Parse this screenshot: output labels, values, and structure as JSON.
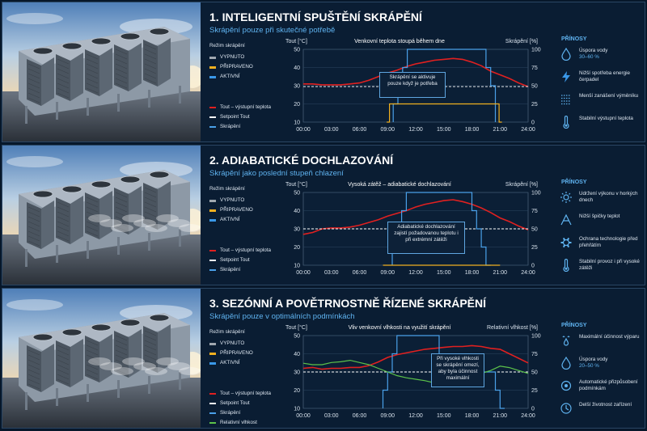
{
  "colors": {
    "tout": "#e02020",
    "setpoint": "#ffffff",
    "spray": "#4aa0e8",
    "humidity": "#5cc24a",
    "off": "#a0a8b0",
    "ready": "#f0b020",
    "active": "#3a98e8",
    "accent": "#5fb3f0"
  },
  "panels": [
    {
      "title": "1. INTELIGENTNÍ SPUŠTĚNÍ SKRÁPĚNÍ",
      "subtitle": "Skrápění pouze při skutečné potřebě",
      "legend": {
        "header": "Režim skrápění",
        "modes": [
          "VYPNUTO",
          "PŘIPRAVENO",
          "AKTIVNÍ"
        ],
        "lines": [
          "Tout – výstupní teplota",
          "Setpoint Tout",
          "Skrápění"
        ]
      },
      "benefits": {
        "header": "PŘÍNOSY",
        "items": [
          {
            "icon": "water-drop-icon",
            "text": "Úspora vody",
            "highlight": "30–60 %"
          },
          {
            "icon": "lightning-icon",
            "text": "Nižší spotřeba energie čerpadel",
            "highlight": ""
          },
          {
            "icon": "heat-exchanger-icon",
            "text": "Menší zanášení výměníku",
            "highlight": ""
          },
          {
            "icon": "thermometer-icon",
            "text": "Stabilní výstupní teplota",
            "highlight": ""
          }
        ]
      },
      "annotation": "Skrápění se aktivuje pouze když je potřeba"
    },
    {
      "title": "2. ADIABATICKÉ DOCHLAZOVÁNÍ",
      "subtitle": "Skrápění jako poslední stupeň chlazení",
      "legend": {
        "header": "Režim skrápění",
        "modes": [
          "VYPNUTO",
          "PŘIPRAVENO",
          "AKTIVNÍ"
        ],
        "lines": [
          "Tout – výstupní teplota",
          "Setpoint Tout",
          "Skrápění"
        ]
      },
      "benefits": {
        "header": "PŘÍNOSY",
        "items": [
          {
            "icon": "sun-icon",
            "text": "Udržení výkonu v horkých dnech",
            "highlight": ""
          },
          {
            "icon": "peak-icon",
            "text": "Nižší špičky teplot",
            "highlight": ""
          },
          {
            "icon": "gear-icon",
            "text": "Ochrana technologie před přehřátím",
            "highlight": ""
          },
          {
            "icon": "thermometer-icon",
            "text": "Stabilní provoz i při vysoké zátěži",
            "highlight": ""
          }
        ]
      },
      "annotation": "Adiabatické dochlazování zajistí požadovanou teplotu i při extrémní zátěži"
    },
    {
      "title": "3. SEZÓNNÍ A POVĚTRNOSTNĚ ŘÍZENÉ SKRÁPĚNÍ",
      "subtitle": "Skrápění pouze v optimálních podmínkách",
      "legend": {
        "header": "Režim skrápění",
        "modes": [
          "VYPNUTO",
          "PŘIPRAVENO",
          "AKTIVNÍ"
        ],
        "lines": [
          "Tout – výstupní teplota",
          "Setpoint Tout",
          "Skrápění",
          "Relativní vlhkost"
        ]
      },
      "benefits": {
        "header": "PŘÍNOSY",
        "items": [
          {
            "icon": "evaporation-icon",
            "text": "Maximální účinnost výparu",
            "highlight": ""
          },
          {
            "icon": "water-drop-icon",
            "text": "Úspora vody",
            "highlight": "20–50 %"
          },
          {
            "icon": "auto-adjust-icon",
            "text": "Automatické přizpůsobení podmínkám",
            "highlight": ""
          },
          {
            "icon": "clock-icon",
            "text": "Delší životnost zařízení",
            "highlight": ""
          }
        ]
      },
      "annotation": "Při vysoké vlhkosti se skrápění omezí, aby byla účinnost maximální"
    }
  ],
  "chart_data": [
    {
      "type": "line",
      "title": "Venkovní teplota stoupá během dne",
      "ylabel_left": "Tout [°C]",
      "ylabel_right": "Skrápění [%]",
      "ylim_left": [
        10,
        50
      ],
      "ylim_right": [
        0,
        100
      ],
      "xticks": [
        "00:00",
        "03:00",
        "06:00",
        "09:00",
        "12:00",
        "15:00",
        "18:00",
        "21:00",
        "24:00"
      ],
      "yticks_left": [
        10,
        20,
        30,
        40,
        50
      ],
      "yticks_right": [
        0,
        25,
        50,
        75,
        100
      ],
      "grid": true,
      "series": [
        {
          "name": "Tout – výstupní teplota",
          "axis": "left",
          "color": "#e02020",
          "x": [
            0,
            1,
            2,
            3,
            4,
            5,
            6,
            7,
            8,
            9,
            10,
            11,
            12,
            13,
            14,
            15,
            16,
            17,
            18,
            19,
            20,
            21,
            22,
            23,
            24
          ],
          "y": [
            31,
            31,
            30.5,
            30.5,
            30.5,
            31,
            31.5,
            33,
            35,
            37,
            38.5,
            40.5,
            42,
            43,
            44,
            44.5,
            45,
            44.5,
            43,
            41,
            38,
            36,
            34,
            31.5,
            29.5
          ]
        },
        {
          "name": "Setpoint Tout",
          "axis": "left",
          "color": "#ffffff",
          "x": [
            0,
            24
          ],
          "y": [
            29.5,
            29.5
          ]
        },
        {
          "name": "Skrápění",
          "axis": "right",
          "color": "#4aa0e8",
          "x": [
            9.6,
            9.6,
            10.1,
            10.1,
            10.6,
            10.6,
            11.1,
            11.1,
            19.5,
            19.5,
            20.0,
            20.0,
            20.5,
            20.5
          ],
          "y": [
            0,
            25,
            25,
            50,
            50,
            75,
            75,
            100,
            100,
            75,
            75,
            50,
            50,
            0
          ]
        },
        {
          "name": "PŘIPRAVENO",
          "axis": "right",
          "color": "#f0b020",
          "x": [
            8.9,
            9.2,
            9.2,
            9.6,
            9.6,
            20.5,
            20.5,
            20.9,
            20.9,
            21.2
          ],
          "y": [
            0,
            0,
            25,
            25,
            25,
            25,
            25,
            25,
            0,
            0
          ]
        }
      ]
    },
    {
      "type": "line",
      "title": "Vysoká zátěž – adiabatické dochlazování",
      "ylabel_left": "Tout [°C]",
      "ylabel_right": "Skrápění [%]",
      "ylim_left": [
        10,
        50
      ],
      "ylim_right": [
        0,
        100
      ],
      "xticks": [
        "00:00",
        "03:00",
        "06:00",
        "09:00",
        "12:00",
        "15:00",
        "18:00",
        "21:00",
        "24:00"
      ],
      "yticks_left": [
        10,
        20,
        30,
        40,
        50
      ],
      "yticks_right": [
        0,
        25,
        50,
        75,
        100
      ],
      "grid": true,
      "series": [
        {
          "name": "Tout – výstupní teplota",
          "axis": "left",
          "color": "#e02020",
          "x": [
            0,
            1,
            2,
            3,
            4,
            5,
            6,
            7,
            8,
            9,
            10,
            11,
            12,
            13,
            14,
            15,
            16,
            17,
            18,
            19,
            20,
            21,
            22,
            23,
            24
          ],
          "y": [
            27,
            28,
            30,
            30.5,
            30.5,
            31,
            32,
            33.5,
            35,
            37,
            38.5,
            40,
            42,
            43.5,
            44.5,
            45.5,
            46,
            45,
            43.5,
            41.5,
            39,
            36,
            34,
            31.5,
            29.5
          ]
        },
        {
          "name": "Setpoint Tout",
          "axis": "left",
          "color": "#ffffff",
          "x": [
            0,
            24
          ],
          "y": [
            30,
            30
          ]
        },
        {
          "name": "Skrápění",
          "axis": "right",
          "color": "#4aa0e8",
          "x": [
            9.5,
            9.5,
            10,
            10,
            10.5,
            10.5,
            11,
            11,
            11.5,
            11.5,
            18,
            18,
            18.5,
            18.5,
            19,
            19,
            19.5,
            19.5,
            20,
            20
          ],
          "y": [
            0,
            25,
            25,
            50,
            50,
            75,
            75,
            100,
            100,
            100,
            100,
            75,
            75,
            50,
            50,
            25,
            25,
            0,
            0,
            0
          ]
        },
        {
          "name": "PŘIPRAVENO",
          "axis": "right",
          "color": "#f0b020",
          "x": [
            8.5,
            8.5,
            9.5,
            9.5,
            20,
            20,
            21
          ],
          "y": [
            0,
            0,
            0,
            0,
            0,
            0,
            0
          ]
        }
      ]
    },
    {
      "type": "line",
      "title": "Vliv venkovní vlhkosti na využití skrápění",
      "ylabel_left": "Tout [°C]",
      "ylabel_right": "Relativní vlhkost [%]",
      "ylim_left": [
        10,
        50
      ],
      "ylim_right": [
        0,
        100
      ],
      "xticks": [
        "00:00",
        "03:00",
        "06:00",
        "09:00",
        "12:00",
        "15:00",
        "18:00",
        "21:00",
        "24:00"
      ],
      "yticks_left": [
        10,
        20,
        30,
        40,
        50
      ],
      "yticks_right": [
        0,
        25,
        50,
        75,
        100
      ],
      "grid": true,
      "series": [
        {
          "name": "Tout – výstupní teplota",
          "axis": "left",
          "color": "#e02020",
          "x": [
            0,
            1,
            2,
            3,
            4,
            5,
            6,
            7,
            8,
            9,
            10,
            11,
            12,
            13,
            14,
            15,
            16,
            17,
            18,
            19,
            20,
            21,
            22,
            23,
            24
          ],
          "y": [
            32,
            32.5,
            31.5,
            32,
            32,
            32.5,
            32.5,
            33.5,
            35.5,
            38,
            39.5,
            40.5,
            41.5,
            42.5,
            43,
            43.5,
            44,
            44,
            44.5,
            44,
            43,
            42.5,
            40,
            37.5,
            35
          ]
        },
        {
          "name": "Setpoint Tout",
          "axis": "left",
          "color": "#ffffff",
          "x": [
            0,
            24
          ],
          "y": [
            30,
            30
          ]
        },
        {
          "name": "Skrápění",
          "axis": "right",
          "color": "#4aa0e8",
          "x": [
            8.5,
            8.5,
            9,
            9,
            9.5,
            9.5,
            10,
            10,
            14.5,
            14.5,
            19,
            19,
            20.5,
            20.5,
            21,
            21,
            21.5,
            21.5
          ],
          "y": [
            0,
            25,
            25,
            50,
            50,
            75,
            75,
            100,
            100,
            50,
            50,
            50,
            50,
            25,
            25,
            0,
            0,
            0
          ]
        },
        {
          "name": "Relativní vlhkost",
          "axis": "right",
          "color": "#5cc24a",
          "x": [
            0,
            1,
            2,
            3,
            4,
            5,
            6,
            7,
            8,
            9,
            10,
            11,
            12,
            13,
            14,
            15,
            16,
            17,
            18,
            19,
            20,
            21,
            22,
            23,
            24
          ],
          "y": [
            62,
            60,
            60,
            63,
            64,
            66,
            63,
            60,
            55,
            50,
            45,
            42,
            40,
            38,
            35,
            34,
            33,
            36,
            40,
            48,
            52,
            58,
            56,
            52,
            48
          ]
        }
      ]
    }
  ]
}
